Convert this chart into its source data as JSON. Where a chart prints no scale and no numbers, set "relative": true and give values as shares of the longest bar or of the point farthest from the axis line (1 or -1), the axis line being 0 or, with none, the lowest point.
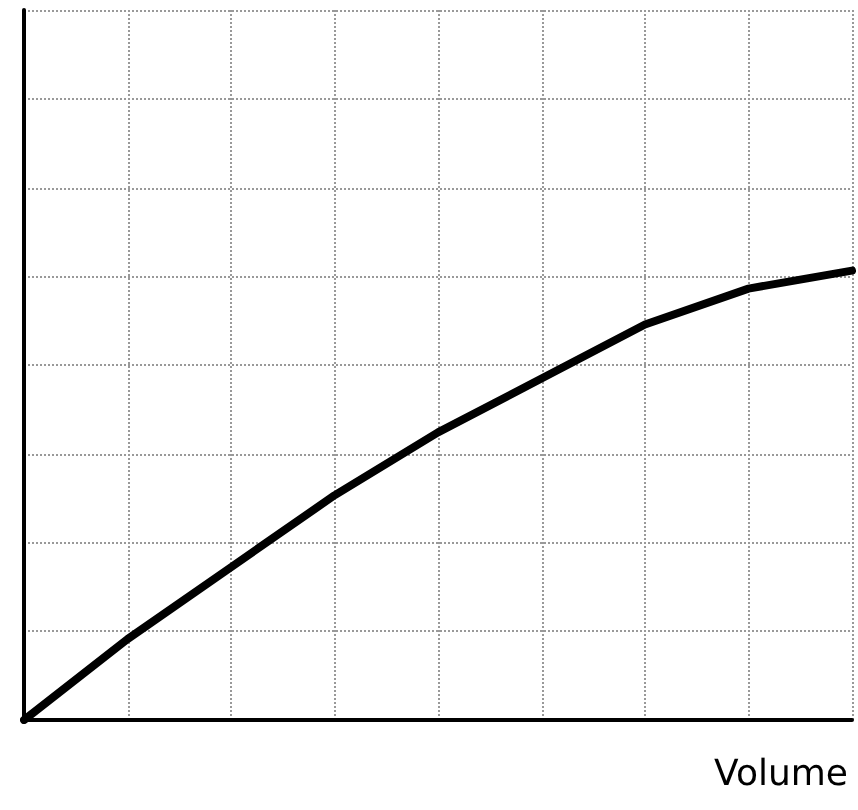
{
  "chart_data": {
    "type": "line",
    "xlabel": "Volume",
    "relative": true,
    "grid": true,
    "marker": "none",
    "line_style": "solid",
    "categories": [
      null,
      null,
      null,
      null,
      null,
      null,
      null,
      null,
      null
    ],
    "series": [
      {
        "color": "#000000",
        "values": [
          0,
          0.18,
          0.34,
          0.5,
          0.64,
          0.76,
          0.88,
          0.96,
          1.0
        ]
      }
    ]
  }
}
